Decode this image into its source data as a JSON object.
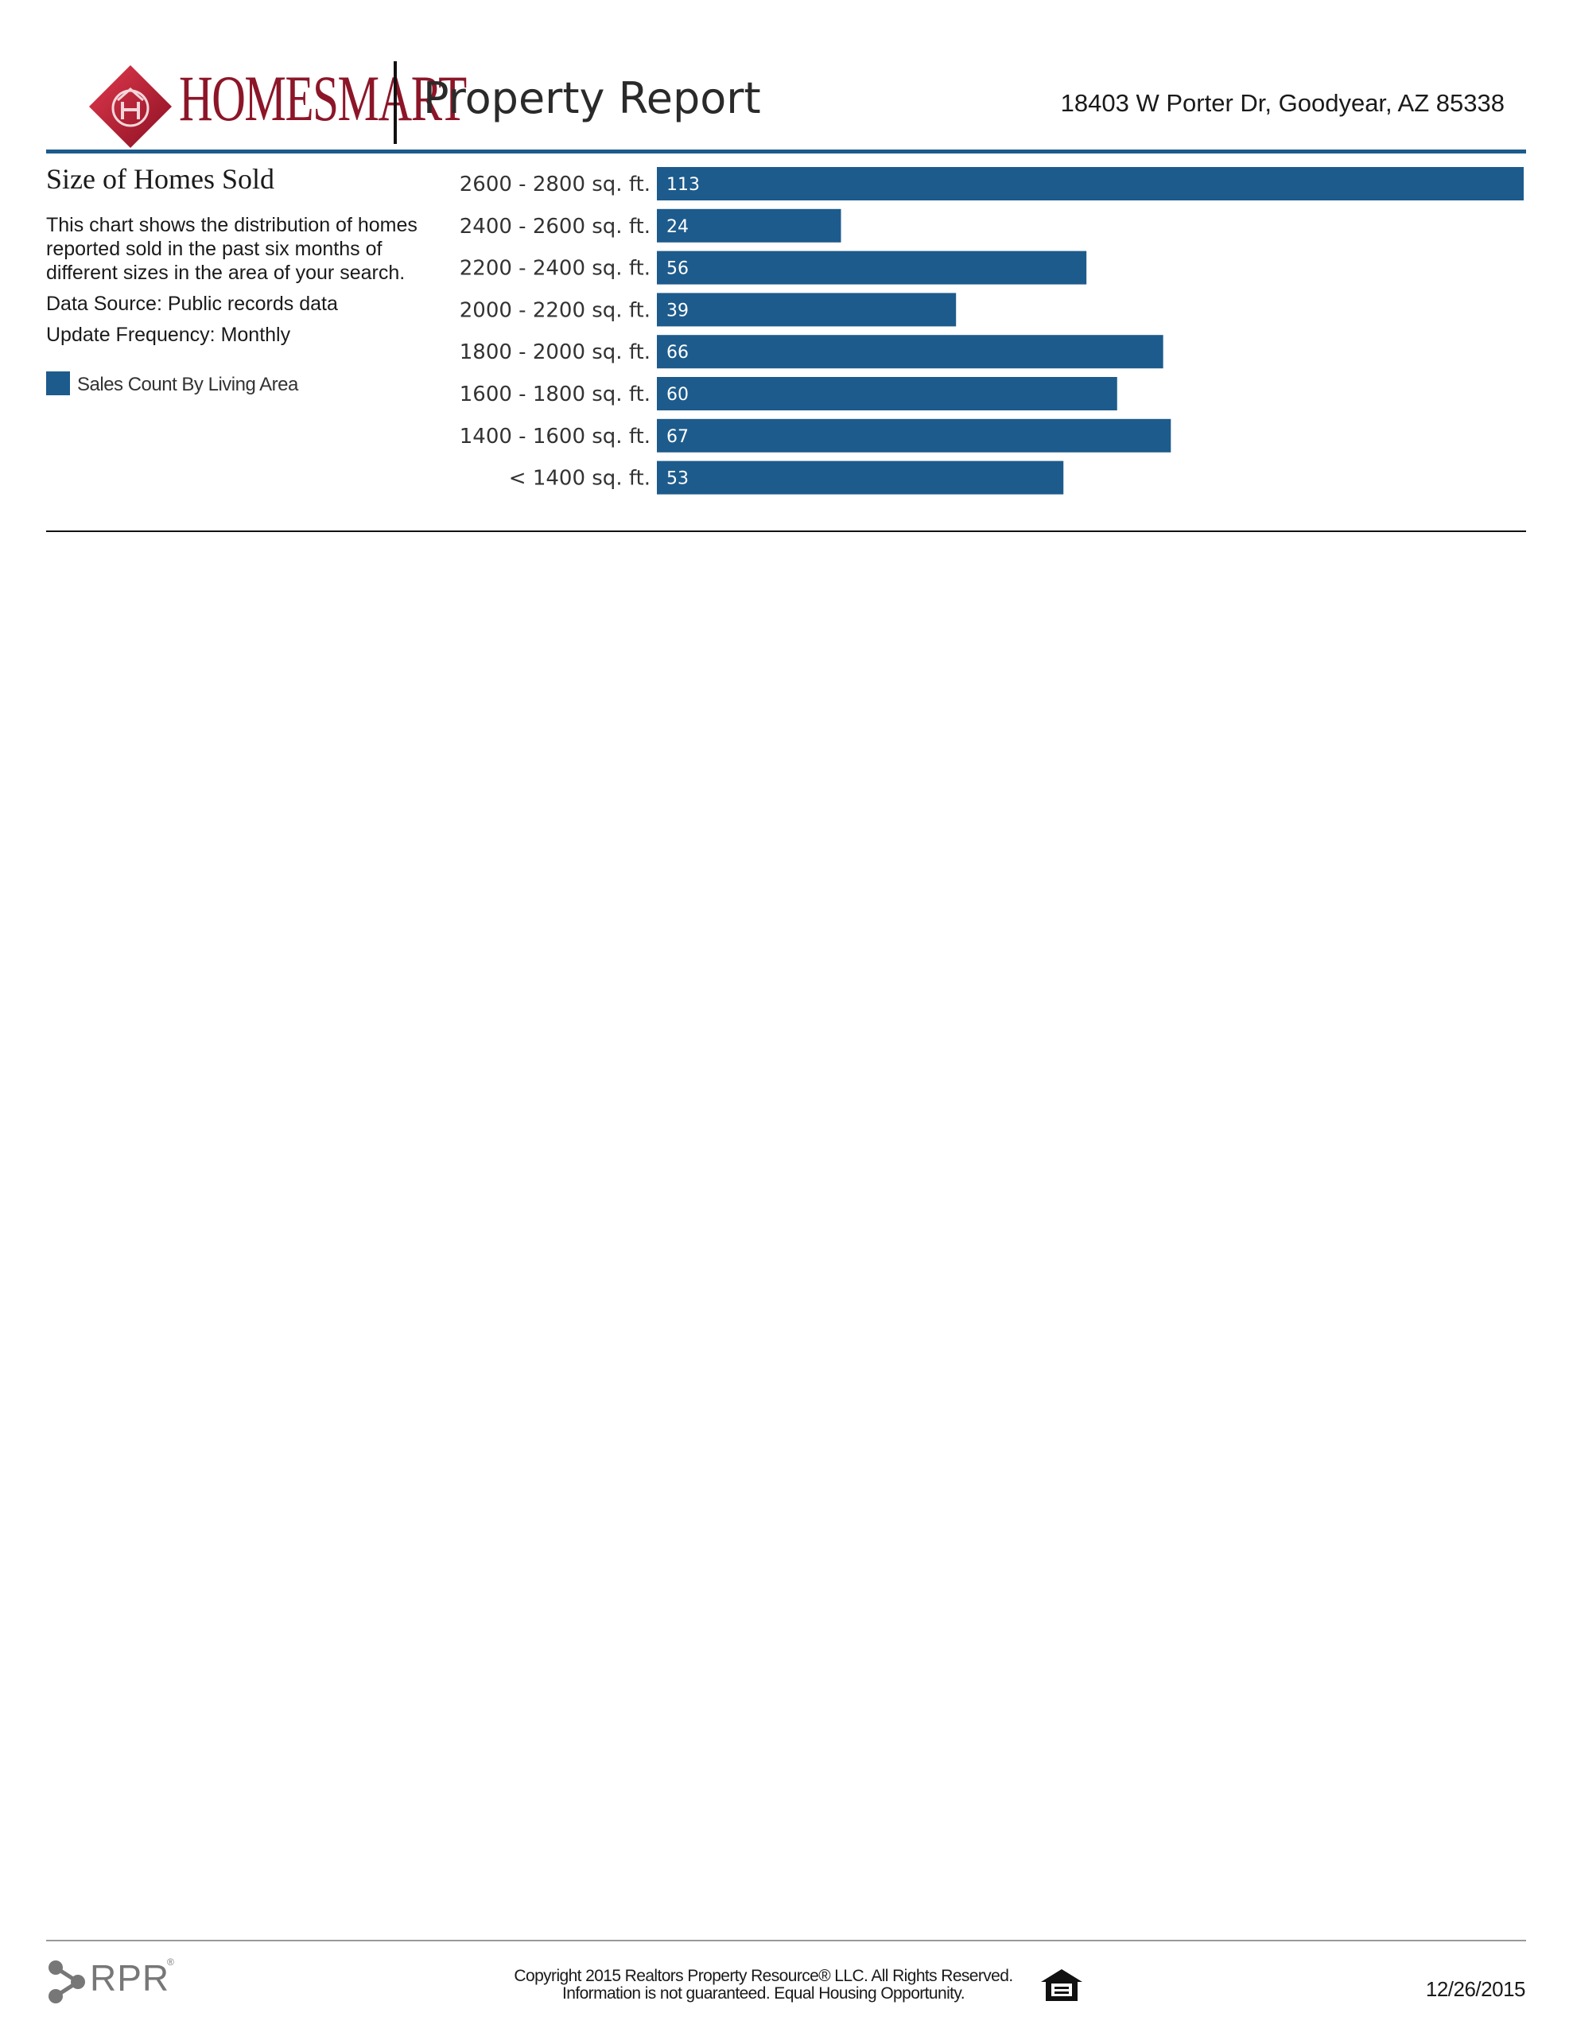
{
  "header": {
    "logo_text": "HOMESMART",
    "report_title": "Property Report",
    "address": "18403 W Porter Dr, Goodyear, AZ 85338"
  },
  "section": {
    "title": "Size of Homes Sold",
    "description": "This chart shows the distribution of homes reported sold in the past six months of different sizes in the area of your search.",
    "data_source": "Data Source: Public records data",
    "update_frequency": "Update Frequency: Monthly",
    "legend_label": "Sales Count By Living Area"
  },
  "colors": {
    "bar": "#1d5b8c",
    "header_rule": "#1d5b8c",
    "logo_red": "#c0182f"
  },
  "chart_data": {
    "type": "bar",
    "orientation": "horizontal",
    "title": "Size of Homes Sold",
    "categories": [
      "2600 - 2800 sq. ft.",
      "2400 - 2600 sq. ft.",
      "2200 - 2400 sq. ft.",
      "2000 - 2200 sq. ft.",
      "1800 - 2000 sq. ft.",
      "1600 - 1800 sq. ft.",
      "1400 - 1600 sq. ft.",
      "< 1400 sq. ft."
    ],
    "series": [
      {
        "name": "Sales Count By Living Area",
        "values": [
          113,
          24,
          56,
          39,
          66,
          60,
          67,
          53
        ]
      }
    ],
    "xlim": [
      0,
      113
    ],
    "grid": false,
    "legend_position": "left"
  },
  "footer": {
    "rpr_text": "RPR",
    "copyright_line1": "Copyright 2015 Realtors Property Resource® LLC. All Rights Reserved.",
    "copyright_line2": "Information is not guaranteed. Equal Housing Opportunity.",
    "date": "12/26/2015",
    "eho_icon": "equal-housing-icon"
  }
}
